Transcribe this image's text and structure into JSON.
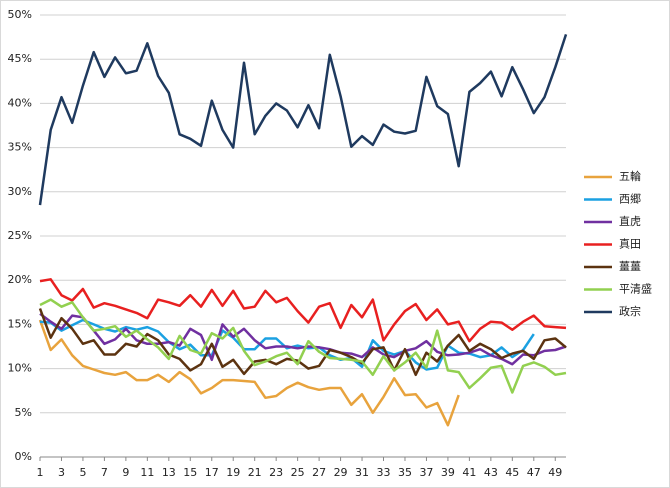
{
  "chart_data": {
    "type": "line",
    "x": [
      1,
      2,
      3,
      4,
      5,
      6,
      7,
      8,
      9,
      10,
      11,
      12,
      13,
      14,
      15,
      16,
      17,
      18,
      19,
      20,
      21,
      22,
      23,
      24,
      25,
      26,
      27,
      28,
      29,
      30,
      31,
      32,
      33,
      34,
      35,
      36,
      37,
      38,
      39,
      40,
      41,
      42,
      43,
      44,
      45,
      46,
      47,
      48,
      49,
      50
    ],
    "xlim": [
      1,
      50
    ],
    "xticks": [
      1,
      3,
      5,
      7,
      9,
      11,
      13,
      15,
      17,
      19,
      21,
      23,
      25,
      27,
      29,
      31,
      33,
      35,
      37,
      39,
      41,
      43,
      45,
      47,
      49
    ],
    "ylim": [
      0,
      50
    ],
    "yticks": [
      {
        "value": 0,
        "label": "0%"
      },
      {
        "value": 5,
        "label": "5%"
      },
      {
        "value": 10,
        "label": "10%"
      },
      {
        "value": 15,
        "label": "15%"
      },
      {
        "value": 20,
        "label": "20%"
      },
      {
        "value": 25,
        "label": "25%"
      },
      {
        "value": 30,
        "label": "30%"
      },
      {
        "value": 35,
        "label": "35%"
      },
      {
        "value": 40,
        "label": "40%"
      },
      {
        "value": 45,
        "label": "45%"
      },
      {
        "value": 50,
        "label": "50%"
      }
    ],
    "grid": true,
    "legend": "right",
    "series": [
      {
        "name": "五輪",
        "color": "#e8a33d",
        "values": [
          15.5,
          12.1,
          13.3,
          11.5,
          10.3,
          9.9,
          9.5,
          9.3,
          9.6,
          8.7,
          8.7,
          9.3,
          8.5,
          9.6,
          8.8,
          7.2,
          7.8,
          8.7,
          8.7,
          8.6,
          8.5,
          6.7,
          6.9,
          7.8,
          8.4,
          7.9,
          7.6,
          7.8,
          7.8,
          5.9,
          7.1,
          5.0,
          6.8,
          8.9,
          7.0,
          7.1,
          5.6,
          6.1,
          3.6,
          7.0,
          null,
          null,
          null,
          null,
          null,
          null,
          null,
          null,
          null,
          null
        ]
      },
      {
        "name": "西郷",
        "color": "#1ba1e2",
        "values": [
          15.3,
          15.2,
          14.3,
          14.9,
          15.5,
          15.0,
          14.5,
          14.2,
          14.7,
          14.4,
          14.7,
          14.2,
          13.0,
          12.2,
          12.7,
          11.5,
          11.5,
          14.3,
          13.5,
          12.2,
          12.2,
          13.4,
          13.4,
          12.3,
          12.6,
          12.3,
          12.4,
          11.5,
          11.0,
          11.2,
          10.2,
          13.2,
          12.0,
          11.6,
          12.0,
          10.7,
          9.9,
          10.1,
          12.6,
          11.8,
          11.7,
          11.3,
          11.5,
          12.4,
          11.3,
          12.1,
          13.9,
          null,
          null,
          null
        ]
      },
      {
        "name": "直虎",
        "color": "#7030a0",
        "values": [
          16.2,
          15.3,
          14.5,
          16.0,
          15.8,
          14.3,
          12.8,
          13.3,
          14.5,
          13.2,
          12.8,
          12.8,
          13.0,
          12.6,
          14.5,
          13.8,
          11.0,
          15.0,
          13.6,
          14.5,
          13.2,
          12.3,
          12.5,
          12.5,
          12.3,
          12.5,
          12.4,
          12.2,
          11.8,
          11.7,
          11.3,
          12.4,
          11.6,
          11.3,
          12.0,
          12.3,
          13.1,
          11.9,
          11.5,
          11.6,
          11.8,
          12.2,
          11.5,
          11.1,
          10.5,
          11.6,
          11.5,
          12.0,
          12.1,
          12.5
        ]
      },
      {
        "name": "真田",
        "color": "#e82020",
        "values": [
          19.9,
          20.1,
          18.3,
          17.7,
          19.0,
          16.9,
          17.4,
          17.1,
          16.7,
          16.3,
          15.7,
          17.8,
          17.5,
          17.1,
          18.3,
          17.0,
          18.9,
          17.1,
          18.8,
          16.8,
          17.0,
          18.8,
          17.5,
          18.0,
          16.5,
          15.2,
          17.0,
          17.4,
          14.6,
          17.2,
          15.8,
          17.8,
          13.2,
          15.0,
          16.5,
          17.3,
          15.5,
          16.7,
          15.0,
          15.3,
          13.1,
          14.5,
          15.3,
          15.2,
          14.4,
          15.3,
          16.0,
          14.8,
          14.7,
          14.6
        ]
      },
      {
        "name": "薑薑",
        "color": "#5c3310",
        "values": [
          16.8,
          13.5,
          15.7,
          14.5,
          12.8,
          13.2,
          11.6,
          11.6,
          12.8,
          12.5,
          13.9,
          13.2,
          11.6,
          11.1,
          9.8,
          10.5,
          12.8,
          10.2,
          11.0,
          9.4,
          10.8,
          11.0,
          10.5,
          11.1,
          10.9,
          10.0,
          10.3,
          12.1,
          11.8,
          11.3,
          10.6,
          12.2,
          12.4,
          9.8,
          12.2,
          9.3,
          11.8,
          10.8,
          12.6,
          13.8,
          12.0,
          12.8,
          12.2,
          11.2,
          11.7,
          12.0,
          11.1,
          13.2,
          13.4,
          12.4
        ]
      },
      {
        "name": "平清盛",
        "color": "#92d050",
        "values": [
          17.2,
          17.8,
          17.0,
          17.5,
          15.8,
          14.3,
          14.5,
          14.8,
          13.6,
          14.3,
          13.3,
          12.4,
          11.1,
          13.7,
          12.1,
          11.7,
          14.0,
          13.4,
          14.6,
          12.0,
          10.4,
          10.8,
          11.4,
          11.8,
          10.5,
          13.1,
          11.9,
          11.2,
          11.1,
          11.0,
          10.8,
          9.3,
          11.4,
          9.8,
          10.7,
          11.8,
          10.1,
          14.3,
          9.8,
          9.6,
          7.8,
          8.9,
          10.1,
          10.3,
          7.3,
          10.3,
          10.7,
          10.2,
          9.3,
          9.5
        ]
      },
      {
        "name": "政宗",
        "color": "#1f3a5f",
        "values": [
          28.5,
          37.0,
          40.7,
          37.8,
          42.0,
          45.8,
          43.0,
          45.2,
          43.4,
          43.7,
          46.8,
          43.1,
          41.2,
          36.5,
          36.0,
          35.2,
          40.3,
          37.0,
          35.0,
          44.6,
          36.5,
          38.6,
          40.0,
          39.2,
          37.3,
          39.8,
          37.2,
          45.5,
          40.8,
          35.1,
          36.3,
          35.3,
          37.6,
          36.8,
          36.6,
          36.9,
          43.0,
          39.7,
          38.8,
          32.9,
          41.3,
          42.3,
          43.6,
          40.8,
          44.1,
          41.6,
          38.9,
          40.7,
          44.1,
          47.8
        ]
      }
    ]
  }
}
